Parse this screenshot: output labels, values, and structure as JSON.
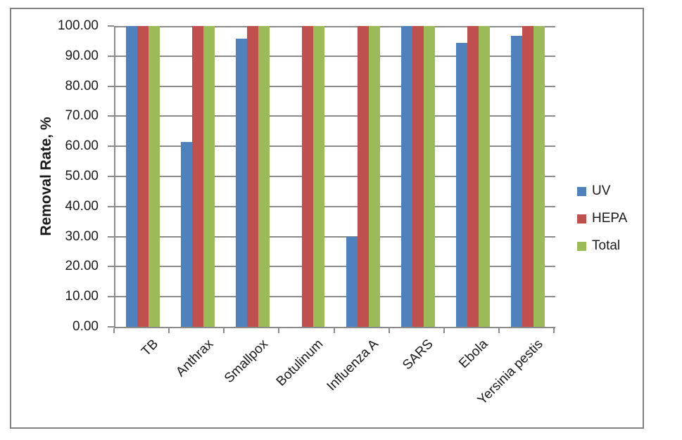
{
  "chart_data": {
    "type": "bar",
    "title": "",
    "xlabel": "",
    "ylabel": "Removal Rate, %",
    "categories": [
      "TB",
      "Anthrax",
      "Smallpox",
      "Botulinum",
      "Influenza A",
      "SARS",
      "Ebola",
      "Yersinia pestis"
    ],
    "series": [
      {
        "name": "UV",
        "color": "#4F81BD",
        "values": [
          100,
          61.5,
          95.7,
          0,
          30.0,
          100,
          94.3,
          96.8
        ]
      },
      {
        "name": "HEPA",
        "color": "#C0504D",
        "values": [
          100,
          100,
          100,
          100,
          100,
          100,
          100,
          100
        ]
      },
      {
        "name": "Total",
        "color": "#9BBB59",
        "values": [
          100,
          100,
          100,
          100,
          100,
          100,
          100,
          100
        ]
      }
    ],
    "ylim": [
      0,
      100
    ],
    "ytick_step": 10,
    "y_tick_labels": [
      "100.00",
      "90.00",
      "80.00",
      "70.00",
      "60.00",
      "50.00",
      "40.00",
      "30.00",
      "20.00",
      "10.00",
      "0.00"
    ],
    "grid": "horizontal",
    "legend_position": "right",
    "x_label_rotation_deg": -45
  },
  "style": {
    "frame_border_color": "#808080",
    "axis_color": "#8A8A8A",
    "text_color": "#1a1a1a",
    "background_color": "#ffffff"
  }
}
